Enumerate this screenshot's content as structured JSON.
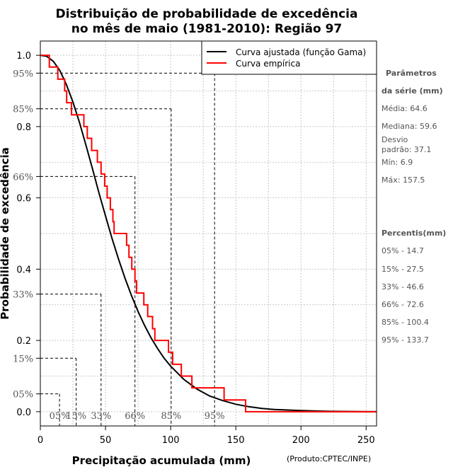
{
  "chart_data": {
    "type": "line",
    "title": [
      "Distribuição de probabilidade de excedência",
      "no mês de maio (1981-2010): Região 97"
    ],
    "xlabel": "Precipitação acumulada (mm)",
    "ylabel": "Probabilidade de excedência",
    "product": "(Produto:CPTEC/INPE)",
    "xlim": [
      0,
      258
    ],
    "ylim": [
      -0.04,
      1.04
    ],
    "x_ticks": [
      0,
      50,
      100,
      150,
      200,
      250
    ],
    "y_ticks": [
      {
        "value": 1.0,
        "label": "1.0"
      },
      {
        "value": 0.8,
        "label": "0.8"
      },
      {
        "value": 0.6,
        "label": "0.6"
      },
      {
        "value": 0.4,
        "label": "0.4"
      },
      {
        "value": 0.2,
        "label": "0.2"
      },
      {
        "value": 0.0,
        "label": "0.0"
      }
    ],
    "grid": true,
    "legend": {
      "position": "top-right",
      "entries": [
        {
          "label": "Curva ajustada (função Gama)",
          "color": "#000000"
        },
        {
          "label": "Curva empírica",
          "color": "#ff0000"
        }
      ]
    },
    "series": [
      {
        "name": "Curva ajustada (função Gama)",
        "color": "#000000",
        "x": [
          0,
          5,
          10,
          15,
          20,
          25,
          30,
          35,
          40,
          45,
          50,
          55,
          60,
          65,
          70,
          75,
          80,
          85,
          90,
          95,
          100,
          110,
          120,
          130,
          140,
          150,
          160,
          170,
          180,
          200,
          220,
          258
        ],
        "y": [
          1.0,
          0.997,
          0.983,
          0.957,
          0.918,
          0.869,
          0.812,
          0.748,
          0.682,
          0.614,
          0.549,
          0.486,
          0.428,
          0.374,
          0.325,
          0.281,
          0.242,
          0.207,
          0.177,
          0.15,
          0.128,
          0.091,
          0.064,
          0.044,
          0.031,
          0.021,
          0.014,
          0.009,
          0.006,
          0.003,
          0.001,
          0.0
        ]
      },
      {
        "name": "Curva empírica",
        "color": "#ff0000",
        "steps": [
          [
            0,
            1.0
          ],
          [
            6.9,
            0.967
          ],
          [
            13.4,
            0.933
          ],
          [
            18.7,
            0.9
          ],
          [
            20.2,
            0.867
          ],
          [
            23.9,
            0.833
          ],
          [
            33.4,
            0.8
          ],
          [
            36.0,
            0.767
          ],
          [
            39.4,
            0.733
          ],
          [
            43.8,
            0.7
          ],
          [
            46.6,
            0.667
          ],
          [
            49.4,
            0.633
          ],
          [
            51.3,
            0.6
          ],
          [
            53.7,
            0.567
          ],
          [
            55.7,
            0.533
          ],
          [
            56.6,
            0.5
          ],
          [
            66.2,
            0.467
          ],
          [
            68.0,
            0.433
          ],
          [
            70.2,
            0.4
          ],
          [
            72.6,
            0.367
          ],
          [
            73.8,
            0.333
          ],
          [
            79.4,
            0.3
          ],
          [
            82.4,
            0.267
          ],
          [
            86.1,
            0.233
          ],
          [
            87.9,
            0.2
          ],
          [
            98.3,
            0.167
          ],
          [
            101.5,
            0.133
          ],
          [
            108.2,
            0.1
          ],
          [
            116.3,
            0.067
          ],
          [
            141.0,
            0.033
          ],
          [
            157.5,
            0.0
          ],
          [
            258,
            0.0
          ]
        ]
      }
    ],
    "percentiles": [
      {
        "label": "05%",
        "x": 14.7,
        "y": 0.05
      },
      {
        "label": "15%",
        "x": 27.5,
        "y": 0.15
      },
      {
        "label": "33%",
        "x": 46.6,
        "y": 0.33
      },
      {
        "label": "66%",
        "x": 72.6,
        "y": 0.66
      },
      {
        "label": "85%",
        "x": 100.4,
        "y": 0.85
      },
      {
        "label": "95%",
        "x": 133.7,
        "y": 0.95
      }
    ]
  },
  "sidebar": {
    "params_heading": [
      "Parâmetros",
      "da série (mm)"
    ],
    "params": [
      "Média: 64.6",
      "Mediana: 59.6",
      "Desvio",
      "padrão: 37.1",
      "Mín: 6.9",
      "Máx: 157.5"
    ],
    "percentis_heading": "Percentis(mm)",
    "percentis": [
      "05% - 14.7",
      "15% - 27.5",
      "33% - 46.6",
      "66% - 72.6",
      "85% - 100.4",
      "95% - 133.7"
    ]
  }
}
